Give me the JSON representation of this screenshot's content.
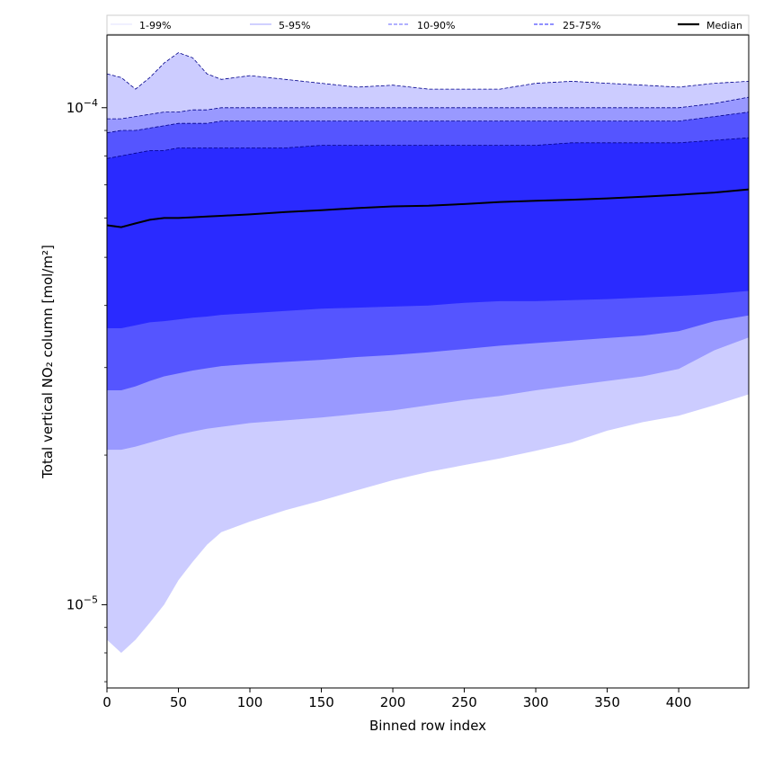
{
  "chart_data": {
    "type": "area",
    "xlabel": "Binned row index",
    "ylabel": "Total vertical NO₂ column [mol/m²]",
    "x_range": [
      0,
      449
    ],
    "y_range": [
      6.8e-06,
      0.00014
    ],
    "yscale": "log",
    "grid": false,
    "legend_position": "top",
    "x_ticks": [
      0,
      50,
      100,
      150,
      200,
      250,
      300,
      350,
      400
    ],
    "x_tick_labels": [
      "0",
      "50",
      "100",
      "150",
      "200",
      "250",
      "300",
      "350",
      "400"
    ],
    "y_ticks": [
      1e-05,
      0.0001
    ],
    "y_tick_labels": [
      {
        "base": "10",
        "exp": "−5"
      },
      {
        "base": "10",
        "exp": "−4"
      }
    ],
    "legend": [
      {
        "label": "1-99%",
        "color": "#e6e6ff",
        "style": "solid"
      },
      {
        "label": "5-95%",
        "color": "#b3b3ff",
        "style": "solid"
      },
      {
        "label": "10-90%",
        "color": "#8080ff",
        "style": "dashed"
      },
      {
        "label": "25-75%",
        "color": "#4d4dff",
        "style": "dashed"
      },
      {
        "label": "Median",
        "color": "#000000",
        "style": "solid"
      }
    ],
    "x": [
      0,
      10,
      20,
      30,
      40,
      50,
      60,
      70,
      80,
      100,
      125,
      150,
      175,
      200,
      225,
      250,
      275,
      300,
      325,
      350,
      375,
      400,
      425,
      449
    ],
    "bands": [
      {
        "label": "1-99%",
        "fill": "#ccccff",
        "line_color": "#00008b",
        "upper": [
          0.000117,
          0.000115,
          0.000109,
          0.000115,
          0.000123,
          0.000129,
          0.000126,
          0.000117,
          0.000114,
          0.000116,
          0.000114,
          0.000112,
          0.00011,
          0.000111,
          0.000109,
          0.000109,
          0.000109,
          0.000112,
          0.000113,
          0.000112,
          0.000111,
          0.00011,
          0.000112,
          0.000113
        ],
        "lower": [
          8.5e-06,
          8e-06,
          8.5e-06,
          9.2e-06,
          1e-05,
          1.12e-05,
          1.22e-05,
          1.32e-05,
          1.4e-05,
          1.47e-05,
          1.55e-05,
          1.62e-05,
          1.7e-05,
          1.78e-05,
          1.85e-05,
          1.91e-05,
          1.97e-05,
          2.04e-05,
          2.12e-05,
          2.24e-05,
          2.33e-05,
          2.4e-05,
          2.52e-05,
          2.65e-05
        ]
      },
      {
        "label": "5-95%",
        "fill": "#9999ff",
        "line_color": "#00008b",
        "upper": [
          9.5e-05,
          9.5e-05,
          9.6e-05,
          9.7e-05,
          9.8e-05,
          9.8e-05,
          9.9e-05,
          9.9e-05,
          0.0001,
          0.0001,
          0.0001,
          0.0001,
          0.0001,
          0.0001,
          0.0001,
          0.0001,
          0.0001,
          0.0001,
          0.0001,
          0.0001,
          0.0001,
          0.0001,
          0.000102,
          0.000105
        ],
        "lower": [
          2.05e-05,
          2.05e-05,
          2.08e-05,
          2.12e-05,
          2.16e-05,
          2.2e-05,
          2.23e-05,
          2.26e-05,
          2.28e-05,
          2.32e-05,
          2.35e-05,
          2.38e-05,
          2.42e-05,
          2.46e-05,
          2.52e-05,
          2.58e-05,
          2.63e-05,
          2.7e-05,
          2.76e-05,
          2.82e-05,
          2.88e-05,
          2.98e-05,
          3.25e-05,
          3.45e-05
        ]
      },
      {
        "label": "10-90%",
        "fill": "#5555ff",
        "line_color": "#00008b",
        "upper": [
          8.9e-05,
          9e-05,
          9e-05,
          9.1e-05,
          9.2e-05,
          9.3e-05,
          9.3e-05,
          9.3e-05,
          9.4e-05,
          9.4e-05,
          9.4e-05,
          9.4e-05,
          9.4e-05,
          9.4e-05,
          9.4e-05,
          9.4e-05,
          9.4e-05,
          9.4e-05,
          9.4e-05,
          9.4e-05,
          9.4e-05,
          9.4e-05,
          9.6e-05,
          9.8e-05
        ],
        "lower": [
          2.7e-05,
          2.7e-05,
          2.75e-05,
          2.82e-05,
          2.88e-05,
          2.92e-05,
          2.96e-05,
          2.99e-05,
          3.02e-05,
          3.05e-05,
          3.08e-05,
          3.11e-05,
          3.15e-05,
          3.18e-05,
          3.22e-05,
          3.27e-05,
          3.32e-05,
          3.36e-05,
          3.4e-05,
          3.44e-05,
          3.48e-05,
          3.55e-05,
          3.72e-05,
          3.82e-05
        ]
      },
      {
        "label": "25-75%",
        "fill": "#2a2aff",
        "line_color": "#00008b",
        "upper": [
          7.9e-05,
          8e-05,
          8.1e-05,
          8.2e-05,
          8.2e-05,
          8.3e-05,
          8.3e-05,
          8.3e-05,
          8.3e-05,
          8.3e-05,
          8.3e-05,
          8.4e-05,
          8.4e-05,
          8.4e-05,
          8.4e-05,
          8.4e-05,
          8.4e-05,
          8.4e-05,
          8.5e-05,
          8.5e-05,
          8.5e-05,
          8.5e-05,
          8.6e-05,
          8.7e-05
        ],
        "lower": [
          3.6e-05,
          3.6e-05,
          3.65e-05,
          3.7e-05,
          3.72e-05,
          3.75e-05,
          3.78e-05,
          3.8e-05,
          3.83e-05,
          3.86e-05,
          3.9e-05,
          3.94e-05,
          3.96e-05,
          3.98e-05,
          4e-05,
          4.05e-05,
          4.08e-05,
          4.08e-05,
          4.1e-05,
          4.12e-05,
          4.15e-05,
          4.18e-05,
          4.22e-05,
          4.28e-05
        ]
      }
    ],
    "median": {
      "label": "Median",
      "color": "#000000",
      "values": [
        5.8e-05,
        5.75e-05,
        5.85e-05,
        5.95e-05,
        6e-05,
        6e-05,
        6.02e-05,
        6.04e-05,
        6.06e-05,
        6.1e-05,
        6.17e-05,
        6.22e-05,
        6.28e-05,
        6.33e-05,
        6.35e-05,
        6.4e-05,
        6.46e-05,
        6.5e-05,
        6.53e-05,
        6.57e-05,
        6.62e-05,
        6.68e-05,
        6.75e-05,
        6.85e-05
      ]
    }
  }
}
